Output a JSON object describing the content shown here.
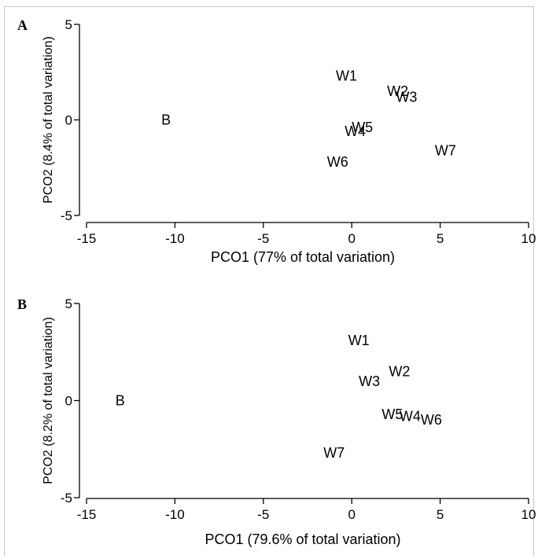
{
  "chart_data": [
    {
      "type": "scatter",
      "panel_label": "A",
      "xlabel": "PCO1 (77% of total variation)",
      "ylabel": "PCO2 (8.4% of total variation)",
      "xlim": [
        -15,
        10
      ],
      "ylim": [
        -5,
        5
      ],
      "xticks": [
        -15,
        -10,
        -5,
        0,
        5,
        10
      ],
      "yticks": [
        -5,
        0,
        5
      ],
      "grid": false,
      "points": [
        {
          "label": "B",
          "x": -10.5,
          "y": 0.0
        },
        {
          "label": "W1",
          "x": -0.3,
          "y": 2.3
        },
        {
          "label": "W2",
          "x": 2.6,
          "y": 1.5
        },
        {
          "label": "W3",
          "x": 3.1,
          "y": 1.2
        },
        {
          "label": "W4",
          "x": 0.2,
          "y": -0.6
        },
        {
          "label": "W5",
          "x": 0.6,
          "y": -0.4
        },
        {
          "label": "W6",
          "x": -0.8,
          "y": -2.2
        },
        {
          "label": "W7",
          "x": 5.3,
          "y": -1.6
        }
      ]
    },
    {
      "type": "scatter",
      "panel_label": "B",
      "xlabel": "PCO1 (79.6% of total variation)",
      "ylabel": "PCO2 (8.2% of total variation)",
      "xlim": [
        -15,
        10
      ],
      "ylim": [
        -5,
        5
      ],
      "xticks": [
        -15,
        -10,
        -5,
        0,
        5,
        10
      ],
      "yticks": [
        -5,
        0,
        5
      ],
      "grid": false,
      "points": [
        {
          "label": "B",
          "x": -13.1,
          "y": 0.0
        },
        {
          "label": "W1",
          "x": 0.4,
          "y": 3.1
        },
        {
          "label": "W2",
          "x": 2.7,
          "y": 1.5
        },
        {
          "label": "W3",
          "x": 1.0,
          "y": 1.0
        },
        {
          "label": "W5",
          "x": 2.3,
          "y": -0.7
        },
        {
          "label": "W4",
          "x": 3.3,
          "y": -0.8
        },
        {
          "label": "W6",
          "x": 4.5,
          "y": -1.0
        },
        {
          "label": "W7",
          "x": -1.0,
          "y": -2.7
        }
      ]
    }
  ]
}
